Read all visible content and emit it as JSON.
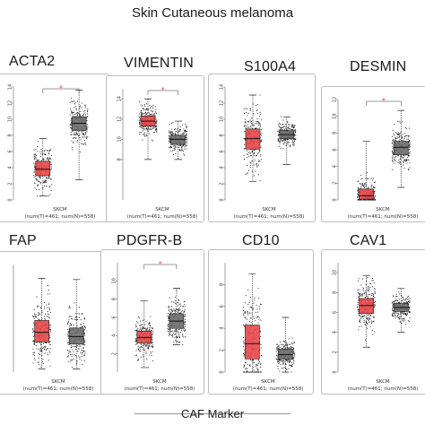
{
  "figure": {
    "title": "Skin Cutaneous melanoma",
    "footer": "CAF Marker"
  },
  "colors": {
    "tumor": "#e8484a",
    "normal": "#6e6e6e",
    "star": "#e8484a"
  },
  "chart_data": [
    {
      "type": "box",
      "title": "ACTA2",
      "cancer": "SKCM",
      "counts_text": "(num(T)=461; num(N)=558)",
      "ylim": [
        0,
        14
      ],
      "yticks": [
        "0",
        "2",
        "4",
        "6",
        "8",
        "10",
        "12",
        "14"
      ],
      "significant": true,
      "series": [
        {
          "name": "T",
          "min": 0.5,
          "q1": 3.0,
          "median": 3.8,
          "q3": 4.8,
          "max": 7.6,
          "n": 461
        },
        {
          "name": "N",
          "min": 2.5,
          "q1": 8.6,
          "median": 9.5,
          "q3": 10.3,
          "max": 13.6,
          "n": 558
        }
      ]
    },
    {
      "type": "box",
      "title": "VIMENTIN",
      "cancer": "SKCM",
      "counts_text": "(num(T)=461; num(N)=558)",
      "ylim": [
        4,
        15
      ],
      "yticks": [
        "8",
        "10",
        "12",
        "14"
      ],
      "significant": true,
      "series": [
        {
          "name": "T",
          "min": 8.0,
          "q1": 11.3,
          "median": 11.8,
          "q3": 12.3,
          "max": 14.0,
          "n": 461
        },
        {
          "name": "N",
          "min": 8.0,
          "q1": 9.5,
          "median": 10.0,
          "q3": 10.4,
          "max": 11.8,
          "n": 558
        }
      ]
    },
    {
      "type": "box",
      "title": "S100A4",
      "cancer": "SKCM",
      "counts_text": "(num(T)=461; num(N)=558)",
      "ylim": [
        0,
        14
      ],
      "yticks": [
        "0",
        "2",
        "4",
        "6",
        "8",
        "10",
        "12",
        "14"
      ],
      "significant": false,
      "series": [
        {
          "name": "T",
          "min": 2.3,
          "q1": 6.3,
          "median": 7.6,
          "q3": 8.8,
          "max": 13.0,
          "n": 461
        },
        {
          "name": "N",
          "min": 4.4,
          "q1": 7.6,
          "median": 8.1,
          "q3": 8.6,
          "max": 10.3,
          "n": 558
        }
      ]
    },
    {
      "type": "box",
      "title": "DESMIN",
      "cancer": "SKCM",
      "counts_text": "(num(T)=461; num(N)=558)",
      "ylim": [
        0,
        12
      ],
      "yticks": [
        "0",
        "2",
        "4",
        "6",
        "8",
        "10",
        "12"
      ],
      "significant": true,
      "series": [
        {
          "name": "T",
          "min": 0,
          "q1": 0.1,
          "median": 0.5,
          "q3": 1.3,
          "max": 7.0,
          "n": 461
        },
        {
          "name": "N",
          "min": 1.5,
          "q1": 5.4,
          "median": 6.3,
          "q3": 7.0,
          "max": 10.7,
          "n": 558
        }
      ]
    },
    {
      "type": "box",
      "title": "FAP",
      "cancer": "SKCM",
      "counts_text": "(num(T)=461; num(N)=558)",
      "ylim": [
        0,
        10
      ],
      "yticks": [],
      "significant": false,
      "series": [
        {
          "name": "T",
          "min": 0.3,
          "q1": 2.8,
          "median": 3.7,
          "q3": 4.8,
          "max": 8.7,
          "n": 461
        },
        {
          "name": "N",
          "min": 0.3,
          "q1": 2.6,
          "median": 3.3,
          "q3": 4.1,
          "max": 8.6,
          "n": 558
        }
      ]
    },
    {
      "type": "box",
      "title": "PDGFR-B",
      "cancer": "SKCM",
      "counts_text": "(num(T)=461; num(N)=558)",
      "ylim": [
        0,
        12
      ],
      "yticks": [
        "2",
        "4",
        "6",
        "8",
        "10"
      ],
      "significant": true,
      "series": [
        {
          "name": "T",
          "min": 0.5,
          "q1": 3.2,
          "median": 3.8,
          "q3": 4.5,
          "max": 7.8,
          "n": 461
        },
        {
          "name": "N",
          "min": 3.0,
          "q1": 4.8,
          "median": 5.6,
          "q3": 6.4,
          "max": 9.2,
          "n": 558
        }
      ]
    },
    {
      "type": "box",
      "title": "CD10",
      "cancer": "SKCM",
      "counts_text": "(num(T)=461; num(N)=558)",
      "ylim": [
        0,
        10
      ],
      "yticks": [
        "0",
        "2",
        "4",
        "6",
        "8"
      ],
      "significant": false,
      "series": [
        {
          "name": "T",
          "min": 0,
          "q1": 1.2,
          "median": 2.6,
          "q3": 4.3,
          "max": 9.0,
          "n": 461
        },
        {
          "name": "N",
          "min": 0,
          "q1": 1.2,
          "median": 1.6,
          "q3": 2.1,
          "max": 5.0,
          "n": 558
        }
      ]
    },
    {
      "type": "box",
      "title": "CAV1",
      "cancer": "SKCM",
      "counts_text": "(num(T)=461; num(N)=558)",
      "ylim": [
        0,
        11
      ],
      "yticks": [
        "0",
        "2",
        "4",
        "6",
        "8",
        "10"
      ],
      "significant": false,
      "series": [
        {
          "name": "T",
          "min": 2.5,
          "q1": 5.9,
          "median": 6.7,
          "q3": 7.4,
          "max": 9.7,
          "n": 461
        },
        {
          "name": "N",
          "min": 4.0,
          "q1": 6.1,
          "median": 6.5,
          "q3": 6.9,
          "max": 8.4,
          "n": 558
        }
      ]
    }
  ]
}
